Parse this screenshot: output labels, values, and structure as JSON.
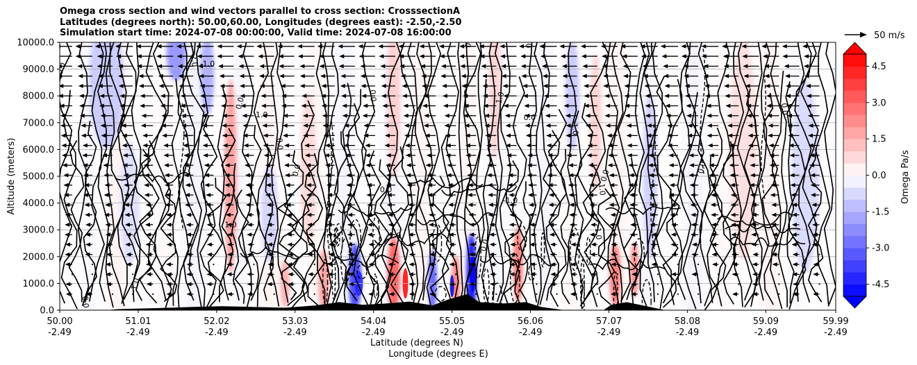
{
  "title_lines": [
    "Omega cross section and wind vectors parallel to cross section: CrosssectionA",
    "Latitudes (degrees north): 50.00,60.00, Longitudes (degrees east): -2.50,-2.50",
    "Simulation start time: 2024-07-08 00:00:00, Valid time: 2024-07-08 16:00:00"
  ],
  "chart_data": {
    "type": "cross-section contour with wind vectors",
    "ylabel": "Altitude (meters)",
    "xlabel_lat": "Latitude (degrees N)",
    "xlabel_lon": "Longitude (degrees E)",
    "ylim": [
      0,
      10000
    ],
    "yticks": [
      "0.0",
      "1000.0",
      "2000.0",
      "3000.0",
      "4000.0",
      "5000.0",
      "6000.0",
      "7000.0",
      "8000.0",
      "9000.0",
      "10000.0"
    ],
    "xlim": [
      50.0,
      59.99
    ],
    "xticks": [
      {
        "lat": "50.00",
        "lon": "-2.49"
      },
      {
        "lat": "51.01",
        "lon": "-2.49"
      },
      {
        "lat": "52.02",
        "lon": "-2.49"
      },
      {
        "lat": "53.03",
        "lon": "-2.49"
      },
      {
        "lat": "54.04",
        "lon": "-2.49"
      },
      {
        "lat": "55.05",
        "lon": "-2.49"
      },
      {
        "lat": "56.06",
        "lon": "-2.49"
      },
      {
        "lat": "57.07",
        "lon": "-2.49"
      },
      {
        "lat": "58.08",
        "lon": "-2.49"
      },
      {
        "lat": "59.09",
        "lon": "-2.49"
      },
      {
        "lat": "59.99",
        "lon": "-2.49"
      }
    ],
    "grid": "horizontal",
    "vector_key": "50 m/s",
    "colorbar": {
      "label": "Omega Pa/s",
      "min": -5.0,
      "max": 5.0,
      "ticks": [
        "-4.5",
        "-3.0",
        "-1.5",
        "0.0",
        "1.5",
        "3.0",
        "4.5"
      ],
      "negative_color": "#0000ff",
      "positive_color": "#ff0000",
      "extend": "both"
    },
    "contour_labels": [
      {
        "text": "0.0",
        "lat": 50.05,
        "z": 9000
      },
      {
        "text": "2.0",
        "lat": 51.7,
        "z": 9300
      },
      {
        "text": "-1.0",
        "lat": 51.9,
        "z": 9100
      },
      {
        "text": "0.0",
        "lat": 52.35,
        "z": 7700
      },
      {
        "text": "0.0",
        "lat": 52.8,
        "z": 6200
      },
      {
        "text": "1.0",
        "lat": 52.6,
        "z": 7200
      },
      {
        "text": "0.0",
        "lat": 53.08,
        "z": 5200
      },
      {
        "text": "0.0",
        "lat": 54.0,
        "z": 8000
      },
      {
        "text": "0.0",
        "lat": 54.2,
        "z": 4400
      },
      {
        "text": "0.0",
        "lat": 55.3,
        "z": 10000
      },
      {
        "text": "0.0",
        "lat": 56.0,
        "z": 10000
      },
      {
        "text": "0.0",
        "lat": 57.3,
        "z": 10000
      },
      {
        "text": "1.0",
        "lat": 55.7,
        "z": 7900
      },
      {
        "text": "-1.0",
        "lat": 56.6,
        "z": 6800
      },
      {
        "text": "0.0",
        "lat": 56.05,
        "z": 7100
      },
      {
        "text": "0.0",
        "lat": 57.05,
        "z": 5000
      },
      {
        "text": "1.0",
        "lat": 56.95,
        "z": 4500
      },
      {
        "text": "-1.0",
        "lat": 55.8,
        "z": 4000
      },
      {
        "text": "0.0",
        "lat": 58.3,
        "z": 5300
      },
      {
        "text": "0.0",
        "lat": 59.3,
        "z": 7500
      },
      {
        "text": "-1.0",
        "lat": 54.3,
        "z": 2700
      },
      {
        "text": "0.0",
        "lat": 55.5,
        "z": 2400
      },
      {
        "text": "-1.0",
        "lat": 56.9,
        "z": 2900
      },
      {
        "text": "1.0",
        "lat": 52.2,
        "z": 3100
      },
      {
        "text": "-1.0",
        "lat": 51.0,
        "z": 900
      },
      {
        "text": "0.0",
        "lat": 50.3,
        "z": 300
      }
    ]
  }
}
